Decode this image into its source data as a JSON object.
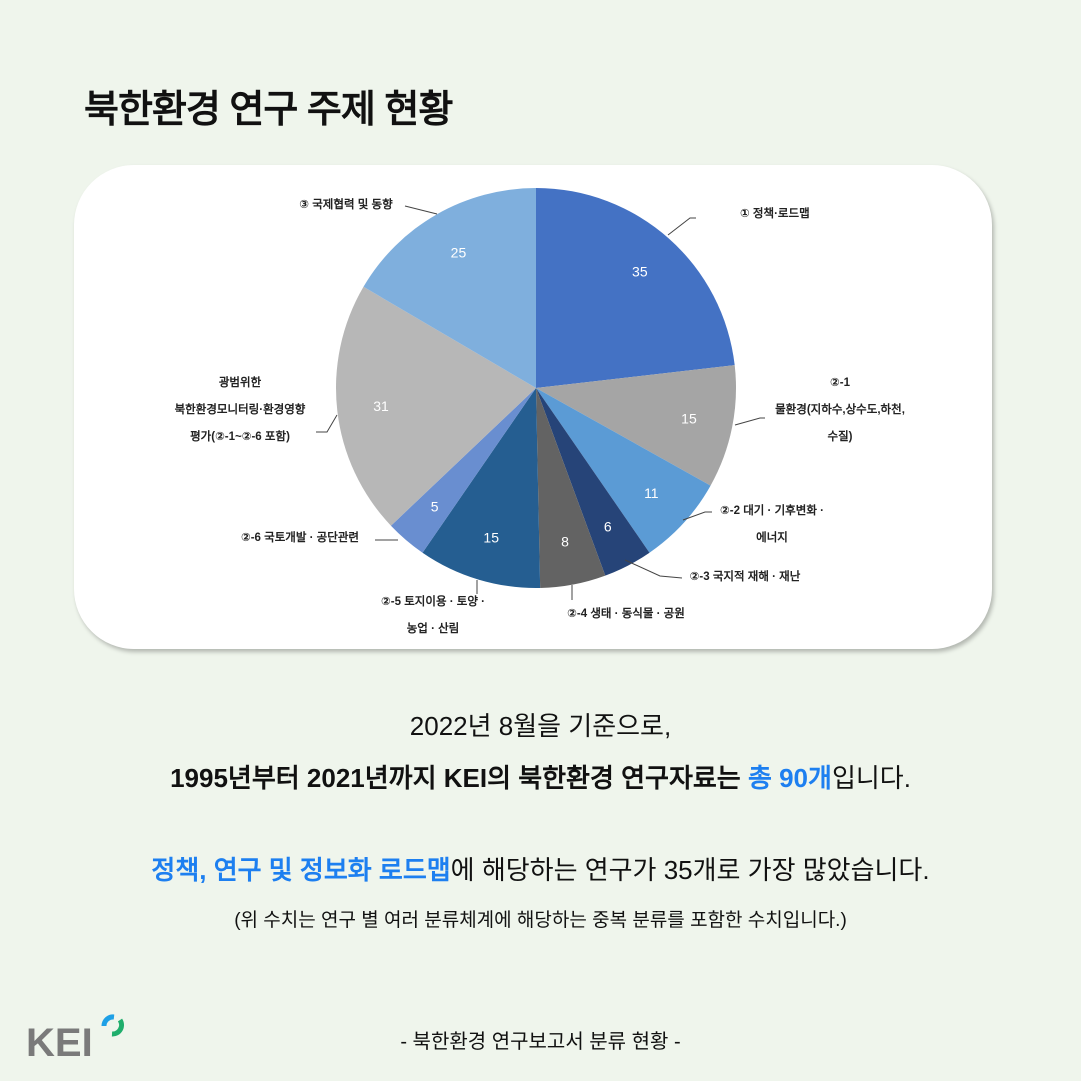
{
  "title": "북한환경 연구 주제 현황",
  "chart_data": {
    "type": "pie",
    "categories": [
      "① 정책·로드맵",
      "②-1 물환경(지하수,상수도,하천, 수질)",
      "②-2 대기 · 기후변화 · 에너지",
      "②-3 국지적 재해 · 재난",
      "②-4 생태 · 동식물 · 공원",
      "②-5 토지이용 · 토양 · 농업 · 산림",
      "②-6 국토개발 · 공단관련",
      "광범위한 북한환경모니터링·환경영향 평가(②-1~②-6 포함)",
      "③ 국제협력 및 동향"
    ],
    "values": [
      35,
      15,
      11,
      6,
      8,
      15,
      5,
      31,
      25
    ],
    "colors": [
      "#4472c4",
      "#a5a5a5",
      "#5b9bd5",
      "#264478",
      "#636363",
      "#255e91",
      "#698ed0",
      "#b7b7b7",
      "#7fafdd"
    ],
    "label_lines": [
      [
        "① 정책·로드맵"
      ],
      [
        "②-1",
        "물환경(지하수,상수도,하천,",
        "수질)"
      ],
      [
        "②-2 대기 · 기후변화 ·",
        "에너지"
      ],
      [
        "②-3 국지적 재해 · 재난"
      ],
      [
        "②-4 생태 · 동식물 · 공원"
      ],
      [
        "②-5 토지이용 · 토양 ·",
        "농업 · 산림"
      ],
      [
        "②-6 국토개발 · 공단관련"
      ],
      [
        "광범위한",
        "북한환경모니터링·환경영향",
        "평가(②-1~②-6 포함)"
      ],
      [
        "③ 국제협력 및 동향"
      ]
    ]
  },
  "text": {
    "l1": "2022년 8월을 기준으로,",
    "l2a": "1995년부터 2021년까지 KEI의 ",
    "l2b": "북한환경 연구자료는 ",
    "l2c": "총 90개",
    "l2d": "입니다.",
    "l3a": "정책, 연구 및 정보화 로드맵",
    "l3b": "에 해당하는 연구가 35개로 가장 많았습니다.",
    "l4": "(위 수치는 연구 별 여러 분류체계에 해당하는 중복 분류를 포함한 수치입니다.)"
  },
  "footer": "- 북한환경 연구보고서 분류 현황 -",
  "logo": "KEI"
}
